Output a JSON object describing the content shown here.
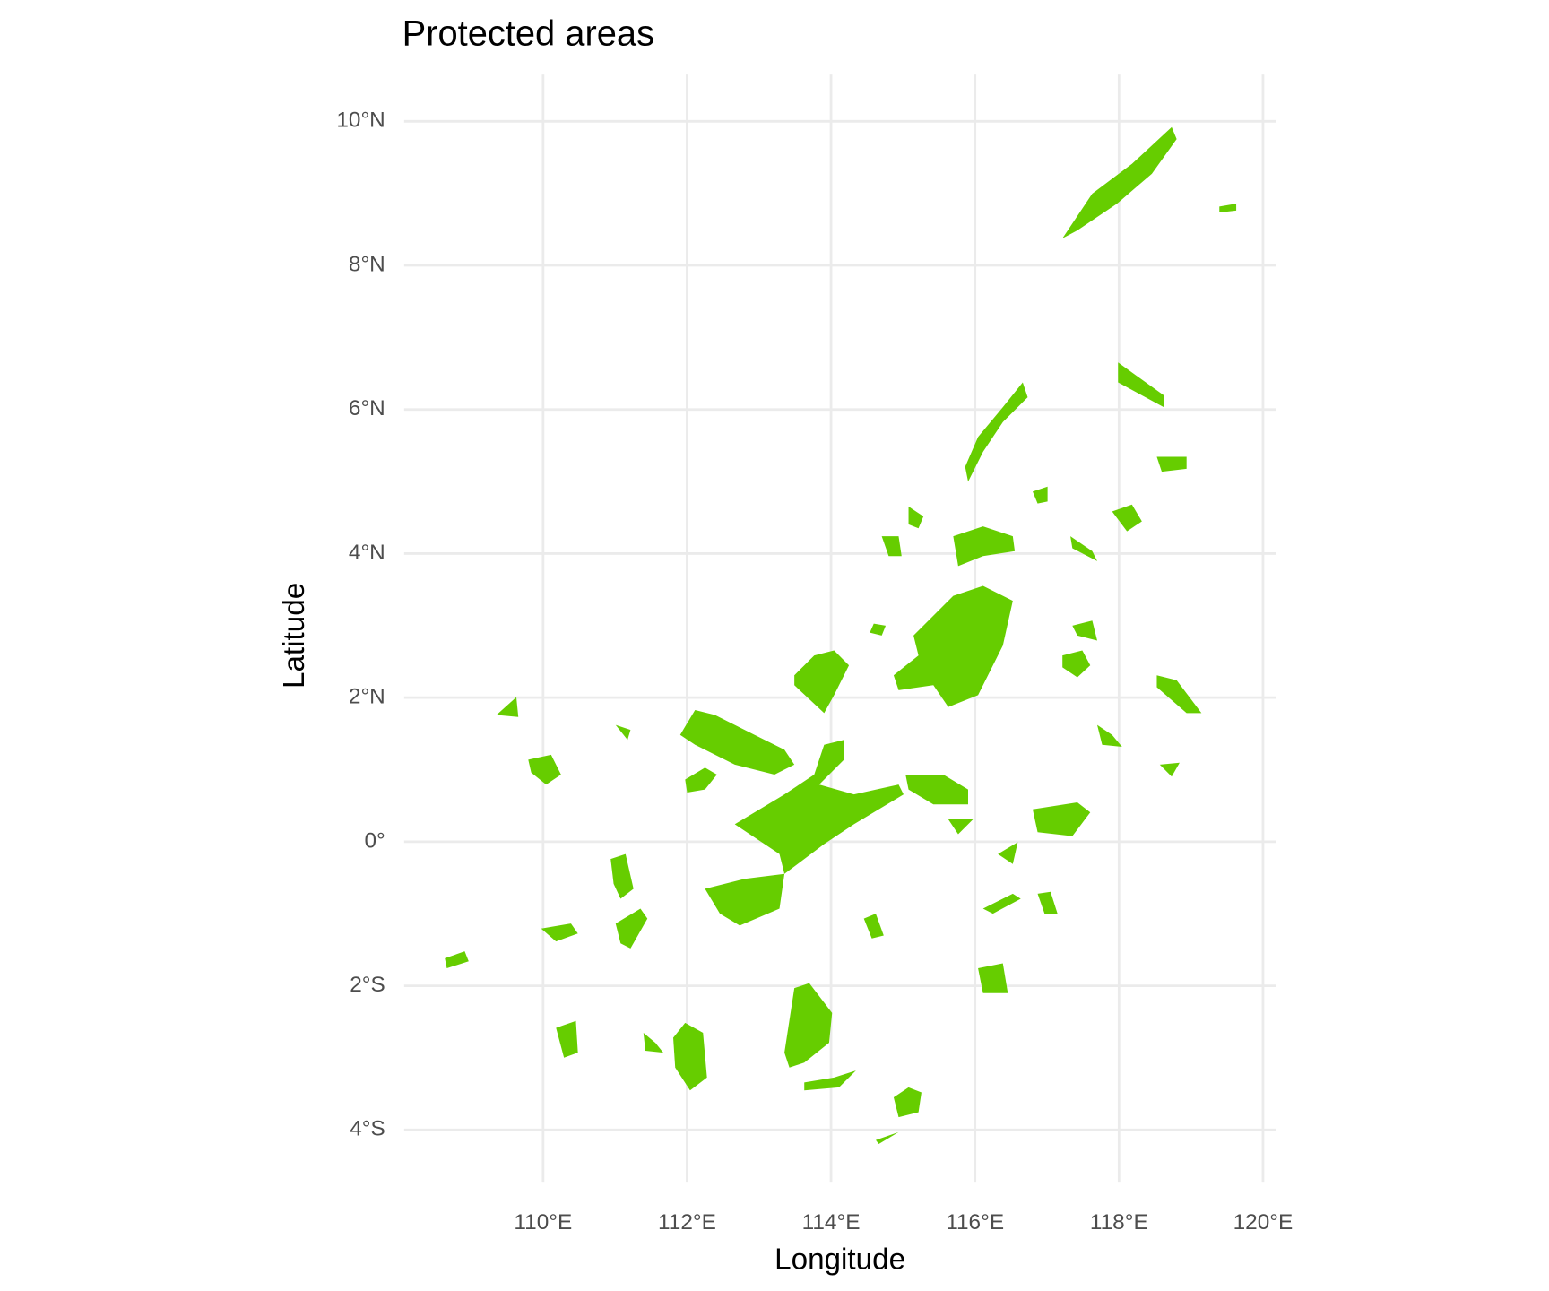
{
  "chart_data": {
    "type": "map",
    "title": "Protected areas",
    "x_label": "Longitude",
    "y_label": "Latitude",
    "xlim": [
      108.07,
      120.18
    ],
    "ylim": [
      -4.72,
      10.65
    ],
    "xticks": [
      {
        "value": 110,
        "label": "110°E"
      },
      {
        "value": 112,
        "label": "112°E"
      },
      {
        "value": 114,
        "label": "114°E"
      },
      {
        "value": 116,
        "label": "116°E"
      },
      {
        "value": 118,
        "label": "118°E"
      },
      {
        "value": 120,
        "label": "120°E"
      }
    ],
    "yticks": [
      {
        "value": 10,
        "label": "10°N"
      },
      {
        "value": 8,
        "label": "8°N"
      },
      {
        "value": 6,
        "label": "6°N"
      },
      {
        "value": 4,
        "label": "4°N"
      },
      {
        "value": 2,
        "label": "2°N"
      },
      {
        "value": 0,
        "label": "0°"
      },
      {
        "value": -2,
        "label": "2°S"
      },
      {
        "value": -4,
        "label": "4°S"
      }
    ],
    "grid": true,
    "color": "#66cd00"
  }
}
